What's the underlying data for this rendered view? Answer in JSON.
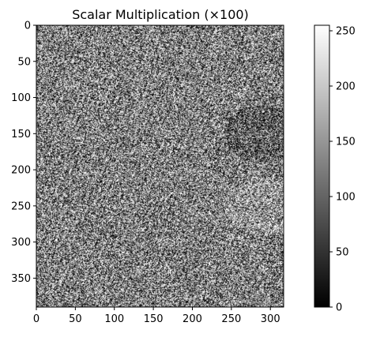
{
  "chart_data": {
    "type": "heatmap",
    "title": "Scalar Multiplication (×100)",
    "xlabel": "",
    "ylabel": "",
    "image_shape": [
      390,
      317
    ],
    "xlim": [
      0,
      317
    ],
    "ylim": [
      390,
      0
    ],
    "x_ticks": [
      0,
      50,
      100,
      150,
      200,
      250,
      300
    ],
    "y_ticks": [
      0,
      50,
      100,
      150,
      200,
      250,
      300,
      350
    ],
    "colormap": "gray",
    "colorbar": {
      "range": [
        0,
        255
      ],
      "ticks": [
        0,
        50,
        100,
        150,
        200,
        250
      ]
    },
    "grid": false
  },
  "labels": {
    "title": "Scalar Multiplication (×100)"
  }
}
